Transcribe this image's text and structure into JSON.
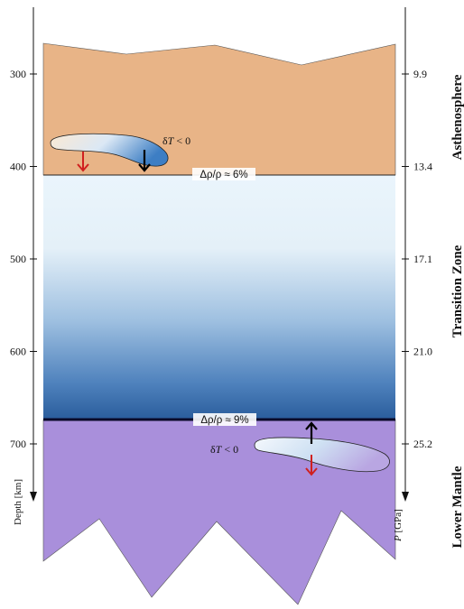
{
  "depth_axis": {
    "title": "Depth [km]",
    "ticks": [
      {
        "label": "300",
        "depth": 300
      },
      {
        "label": "400",
        "depth": 400
      },
      {
        "label": "500",
        "depth": 500
      },
      {
        "label": "600",
        "depth": 600
      },
      {
        "label": "700",
        "depth": 700
      }
    ]
  },
  "pressure_axis": {
    "title_var": "P",
    "title_unit": " [GPa]",
    "ticks": [
      {
        "label": "9.9",
        "depth": 300
      },
      {
        "label": "13.4",
        "depth": 400
      },
      {
        "label": "17.1",
        "depth": 500
      },
      {
        "label": "21.0",
        "depth": 600
      },
      {
        "label": "25.2",
        "depth": 700
      }
    ]
  },
  "layers": {
    "asthenosphere": "Asthenosphere",
    "transition_zone": "Transition Zone",
    "lower_mantle": "Lower Mantle"
  },
  "boundaries": {
    "upper": {
      "label": "Δρ/ρ ≈ 6%",
      "depth": 410
    },
    "lower": {
      "label": "Δρ/ρ ≈ 9%",
      "depth": 670
    }
  },
  "slab_upper": {
    "delta_var": "δ",
    "delta_sym": "T",
    "delta_rest": " < 0"
  },
  "slab_lower": {
    "delta_var": "δ",
    "delta_sym": "T",
    "delta_rest": " < 0"
  },
  "colors": {
    "asthenosphere": "#e8b487",
    "transition_top": "#e8f4fb",
    "transition_bottom": "#2a5d9c",
    "lower_mantle": "#a98fdb",
    "arrow_red": "#d0201f",
    "arrow_black": "#000000"
  }
}
